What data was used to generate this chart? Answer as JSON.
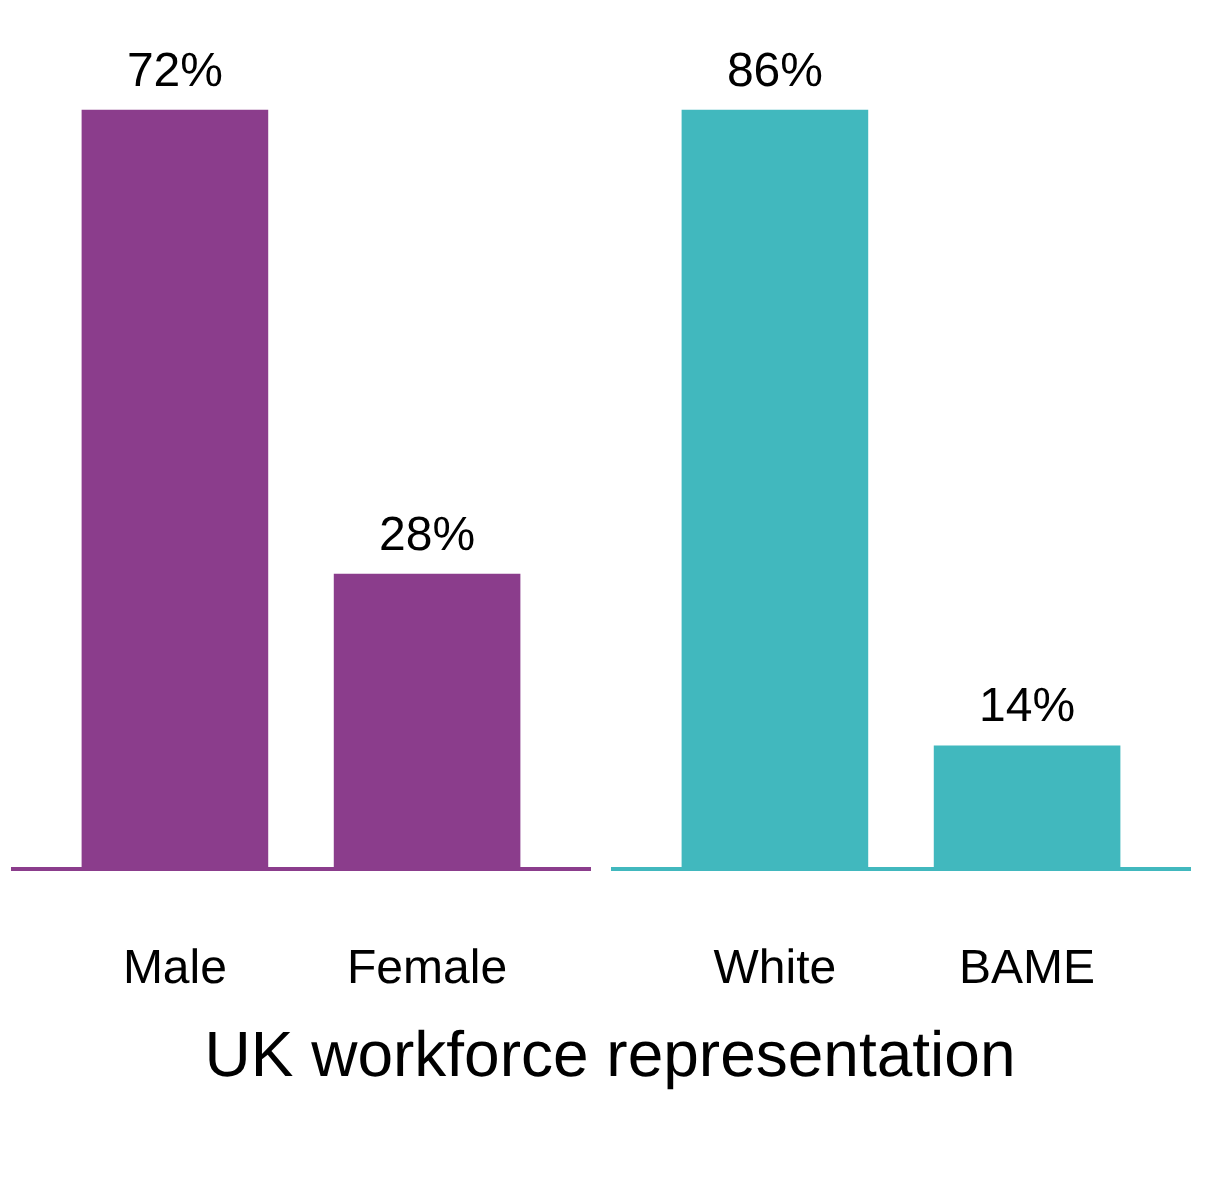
{
  "chart_data": [
    {
      "type": "bar",
      "title": "UK workforce representation",
      "categories": [
        "Male",
        "Female"
      ],
      "values": [
        72,
        28
      ],
      "value_labels": [
        "72%",
        "28%"
      ],
      "color": "#8b3d8c"
    },
    {
      "type": "bar",
      "categories": [
        "White",
        "BAME"
      ],
      "values": [
        86,
        14
      ],
      "value_labels": [
        "86%",
        "14%"
      ],
      "color": "#41b8be"
    }
  ]
}
